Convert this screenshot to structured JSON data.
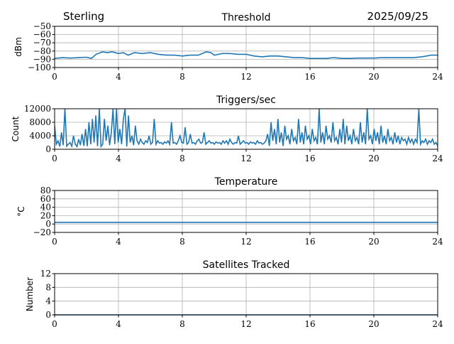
{
  "header": {
    "station": "Sterling",
    "date": "2025/09/25"
  },
  "chart_data": [
    {
      "type": "line",
      "title": "Threshold",
      "ylabel": "dBm",
      "xlim": [
        0,
        24
      ],
      "ylim": [
        -100,
        -50
      ],
      "xticks": [
        0,
        4,
        8,
        12,
        16,
        20,
        24
      ],
      "yticks": [
        -100,
        -90,
        -80,
        -70,
        -60,
        -50
      ],
      "grid": true,
      "color": "#1f77b4",
      "x": [
        0,
        0.5,
        1,
        1.5,
        2,
        2.3,
        2.6,
        3,
        3.3,
        3.6,
        4,
        4.3,
        4.6,
        5,
        5.5,
        6,
        6.5,
        7,
        7.5,
        8,
        8.5,
        9,
        9.5,
        9.8,
        10,
        10.5,
        11,
        11.5,
        12,
        12.5,
        13,
        13.5,
        14,
        14.5,
        15,
        15.5,
        16,
        16.5,
        17,
        17.5,
        18,
        18.5,
        19,
        19.5,
        20,
        20.5,
        21,
        21.5,
        22,
        22.5,
        23,
        23.3,
        23.6,
        24
      ],
      "y": [
        -89,
        -88,
        -88.5,
        -88,
        -87.5,
        -89,
        -84,
        -81,
        -82,
        -81,
        -83,
        -82,
        -85,
        -82,
        -83,
        -82,
        -84,
        -85,
        -85,
        -86,
        -85,
        -85,
        -81,
        -82,
        -85,
        -83,
        -83,
        -84,
        -84,
        -86,
        -87,
        -86,
        -86,
        -87,
        -88,
        -88,
        -89,
        -89,
        -89,
        -88,
        -89,
        -89,
        -88.5,
        -88.5,
        -88.5,
        -88,
        -88,
        -88,
        -88,
        -88,
        -87,
        -86,
        -85,
        -85
      ]
    },
    {
      "type": "line",
      "title": "Triggers/sec",
      "ylabel": "Count",
      "xlim": [
        0,
        24
      ],
      "ylim": [
        0,
        12000
      ],
      "xticks": [
        0,
        4,
        8,
        12,
        16,
        20,
        24
      ],
      "yticks": [
        0,
        4000,
        8000,
        12000
      ],
      "grid": true,
      "color": "#1f77b4",
      "x_step_hours": 0.1,
      "y": [
        7000,
        1500,
        2500,
        800,
        5000,
        1200,
        12000,
        900,
        1500,
        2000,
        900,
        4000,
        1500,
        800,
        3000,
        1200,
        4500,
        1000,
        6000,
        900,
        8000,
        1500,
        9000,
        2000,
        10000,
        900,
        12000,
        800,
        1500,
        9000,
        2500,
        7000,
        1200,
        5000,
        12000,
        1500,
        12000,
        2000,
        6000,
        1500,
        9000,
        12000,
        800,
        10000,
        2000,
        4000,
        1200,
        7000,
        2500,
        1500,
        3000,
        2000,
        1500,
        2500,
        2000,
        4000,
        1500,
        2000,
        9000,
        1500,
        2500,
        1800,
        2000,
        1500,
        2200,
        1800,
        2500,
        1500,
        8000,
        1800,
        2000,
        1500,
        2500,
        4000,
        2000,
        1800,
        6500,
        1500,
        2000,
        4500,
        1800,
        2000,
        1500,
        2500,
        3000,
        1800,
        2000,
        5000,
        1500,
        2000,
        2500,
        1800,
        2000,
        1500,
        2200,
        1800,
        2000,
        1500,
        2500,
        1800,
        2500,
        1500,
        3000,
        2000,
        1500,
        2000,
        1800,
        4000,
        1500,
        2000,
        2500,
        1800,
        2000,
        1500,
        2200,
        1800,
        2000,
        1500,
        2500,
        1800,
        2000,
        1500,
        1800,
        2500,
        4500,
        1000,
        8000,
        2500,
        6000,
        1500,
        9000,
        2000,
        5000,
        1000,
        7000,
        3000,
        4000,
        1500,
        6000,
        2500,
        3500,
        1500,
        9000,
        2000,
        5000,
        1500,
        7000,
        3000,
        4000,
        1500,
        6000,
        2500,
        3500,
        1500,
        12000,
        2000,
        5000,
        1500,
        7000,
        3000,
        4000,
        2000,
        8000,
        2500,
        3500,
        1500,
        6000,
        2000,
        9000,
        1500,
        7000,
        2500,
        4000,
        1500,
        6000,
        2500,
        3500,
        1500,
        8000,
        2000,
        5000,
        1500,
        12000,
        3000,
        4000,
        1500,
        6000,
        2500,
        5000,
        1500,
        7000,
        2000,
        4000,
        1500,
        6000,
        2500,
        3500,
        1500,
        5000,
        2000,
        4000,
        1500,
        3500,
        2500,
        3000,
        1500,
        3500,
        2000,
        3000,
        1500,
        3000,
        2000,
        12000,
        1500,
        2500,
        2000,
        3000,
        1500,
        2500,
        2000,
        3000,
        1500,
        2000,
        1000
      ]
    },
    {
      "type": "line",
      "title": "Temperature",
      "ylabel": "°C",
      "xlim": [
        0,
        24
      ],
      "ylim": [
        -20,
        80
      ],
      "xticks": [
        0,
        4,
        8,
        12,
        16,
        20,
        24
      ],
      "yticks": [
        -20,
        0,
        20,
        40,
        60,
        80
      ],
      "grid": true,
      "color": "#1f77b4",
      "x": [
        0,
        24
      ],
      "y": [
        4,
        4
      ]
    },
    {
      "type": "line",
      "title": "Satellites Tracked",
      "ylabel": "Number",
      "xlim": [
        0,
        24
      ],
      "ylim": [
        0,
        12
      ],
      "xticks": [
        0,
        4,
        8,
        12,
        16,
        20,
        24
      ],
      "yticks": [
        0,
        4,
        8,
        12
      ],
      "grid": true,
      "color": "#1f77b4",
      "x": [
        0,
        24
      ],
      "y": [
        0,
        0
      ]
    }
  ]
}
